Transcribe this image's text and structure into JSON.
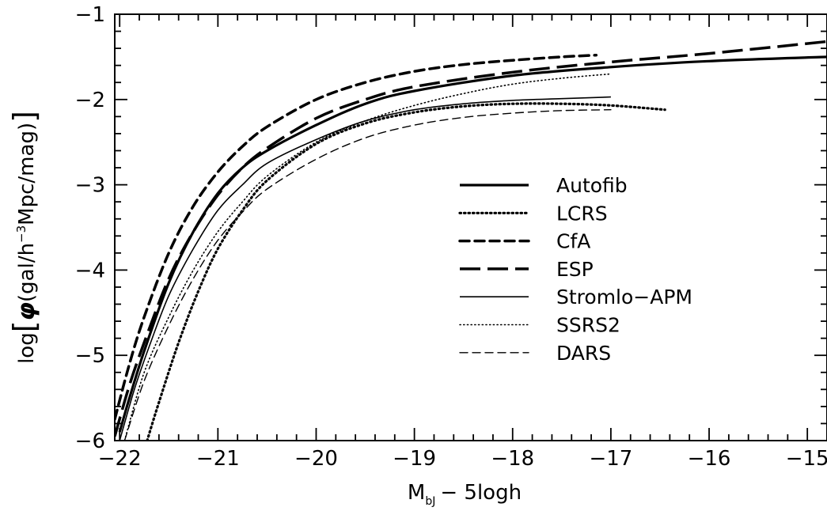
{
  "chart_data": {
    "type": "line",
    "xlabel_main": "M",
    "xlabel_sub": "bJ",
    "xlabel_rest": "− 5logh",
    "ylabel_prefix": "log",
    "ylabel_phi": "φ",
    "ylabel_inner": "(gal/h",
    "ylabel_exp": "−3",
    "ylabel_rest": "Mpc/mag)",
    "xlim": [
      -22.05,
      -14.8
    ],
    "ylim": [
      -6,
      -1
    ],
    "xticks": [
      -22,
      -21,
      -20,
      -19,
      -18,
      -17,
      -16,
      -15
    ],
    "xtick_labels": [
      "−22",
      "−21",
      "−20",
      "−19",
      "−18",
      "−17",
      "−16",
      "−15"
    ],
    "yticks": [
      -6,
      -5,
      -4,
      -3,
      -2,
      -1
    ],
    "ytick_labels": [
      "−6",
      "−5",
      "−4",
      "−3",
      "−2",
      "−1"
    ],
    "grid": false,
    "legend_position": "center-right",
    "series": [
      {
        "name": "Autofib",
        "style": "solid-thick",
        "x": [
          -22.0,
          -21.9,
          -21.75,
          -21.5,
          -21.25,
          -21.0,
          -20.75,
          -20.5,
          -20.0,
          -19.5,
          -19.0,
          -18.0,
          -17.0,
          -16.0,
          -14.8
        ],
        "y": [
          -5.9,
          -5.5,
          -4.95,
          -4.15,
          -3.55,
          -3.1,
          -2.8,
          -2.6,
          -2.3,
          -2.05,
          -1.9,
          -1.72,
          -1.62,
          -1.55,
          -1.5
        ]
      },
      {
        "name": "LCRS",
        "style": "dotted-thick",
        "x": [
          -21.72,
          -21.6,
          -21.4,
          -21.2,
          -21.0,
          -20.75,
          -20.5,
          -20.0,
          -19.5,
          -19.0,
          -18.5,
          -18.0,
          -17.5,
          -17.0,
          -16.45
        ],
        "y": [
          -6.0,
          -5.55,
          -4.85,
          -4.25,
          -3.75,
          -3.3,
          -2.95,
          -2.52,
          -2.28,
          -2.15,
          -2.08,
          -2.05,
          -2.05,
          -2.07,
          -2.12
        ]
      },
      {
        "name": "CfA",
        "style": "dashed-thick",
        "x": [
          -22.05,
          -21.9,
          -21.75,
          -21.5,
          -21.25,
          -21.0,
          -20.75,
          -20.5,
          -20.0,
          -19.5,
          -19.0,
          -18.5,
          -18.0,
          -17.5,
          -17.15
        ],
        "y": [
          -5.75,
          -5.1,
          -4.55,
          -3.8,
          -3.25,
          -2.85,
          -2.55,
          -2.32,
          -2.0,
          -1.8,
          -1.67,
          -1.59,
          -1.54,
          -1.5,
          -1.48
        ]
      },
      {
        "name": "ESP",
        "style": "longdash-thick",
        "x": [
          -22.05,
          -21.9,
          -21.75,
          -21.5,
          -21.25,
          -21.0,
          -20.75,
          -20.5,
          -20.0,
          -19.5,
          -19.0,
          -18.0,
          -17.0,
          -16.0,
          -14.8
        ],
        "y": [
          -5.95,
          -5.35,
          -4.85,
          -4.1,
          -3.55,
          -3.12,
          -2.8,
          -2.57,
          -2.22,
          -2.0,
          -1.85,
          -1.68,
          -1.56,
          -1.46,
          -1.32
        ]
      },
      {
        "name": "Stromlo−APM",
        "style": "solid-thin",
        "x": [
          -22.0,
          -21.85,
          -21.7,
          -21.5,
          -21.25,
          -21.0,
          -20.75,
          -20.5,
          -20.0,
          -19.5,
          -19.0,
          -18.5,
          -18.0,
          -17.5,
          -17.0
        ],
        "y": [
          -6.0,
          -5.4,
          -4.9,
          -4.3,
          -3.75,
          -3.3,
          -3.0,
          -2.75,
          -2.47,
          -2.25,
          -2.12,
          -2.05,
          -2.01,
          -1.99,
          -1.97
        ]
      },
      {
        "name": "SSRS2",
        "style": "dotted-thin",
        "x": [
          -21.95,
          -21.75,
          -21.5,
          -21.25,
          -21.0,
          -20.75,
          -20.5,
          -20.0,
          -19.5,
          -19.0,
          -18.5,
          -18.0,
          -17.5,
          -17.0
        ],
        "y": [
          -6.0,
          -5.2,
          -4.55,
          -4.0,
          -3.55,
          -3.2,
          -2.9,
          -2.5,
          -2.25,
          -2.07,
          -1.93,
          -1.82,
          -1.75,
          -1.7
        ]
      },
      {
        "name": "DARS",
        "style": "dashed-thin",
        "x": [
          -21.95,
          -21.75,
          -21.5,
          -21.25,
          -21.0,
          -20.75,
          -20.5,
          -20.0,
          -19.5,
          -19.0,
          -18.5,
          -18.0,
          -17.5,
          -17.0
        ],
        "y": [
          -6.0,
          -5.3,
          -4.65,
          -4.1,
          -3.65,
          -3.32,
          -3.05,
          -2.7,
          -2.45,
          -2.3,
          -2.21,
          -2.16,
          -2.13,
          -2.12
        ]
      }
    ]
  }
}
